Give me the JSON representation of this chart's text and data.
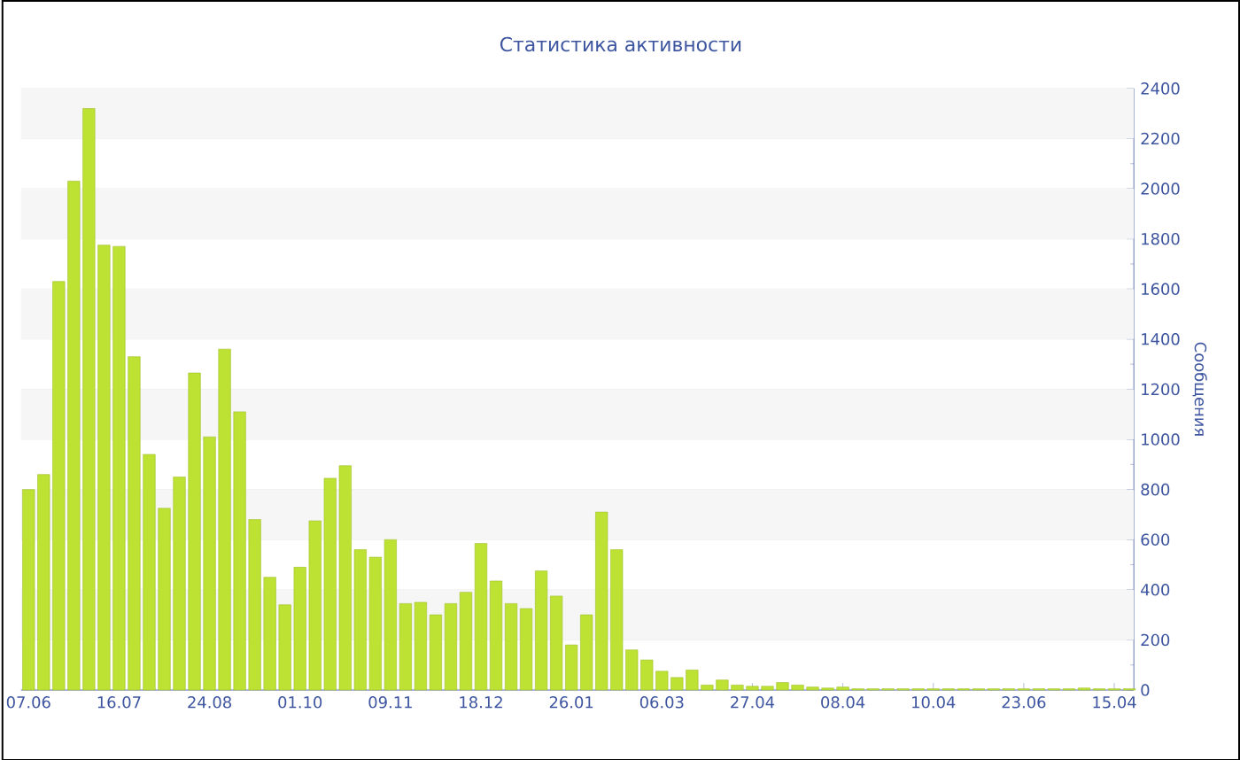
{
  "chart_data": {
    "type": "bar",
    "title": "Статистика активности",
    "ylabel": "Сообщения",
    "categories": [
      "07.06",
      null,
      null,
      null,
      null,
      null,
      "16.07",
      null,
      null,
      null,
      null,
      null,
      "24.08",
      null,
      null,
      null,
      null,
      null,
      "01.10",
      null,
      null,
      null,
      null,
      null,
      "09.11",
      null,
      null,
      null,
      null,
      null,
      "18.12",
      null,
      null,
      null,
      null,
      null,
      "26.01",
      null,
      null,
      null,
      null,
      null,
      "06.03",
      null,
      null,
      null,
      null,
      null,
      "27.04",
      null,
      null,
      null,
      null,
      null,
      "08.04",
      null,
      null,
      null,
      null,
      null,
      "10.04",
      null,
      null,
      null,
      null,
      null,
      "23.06",
      null,
      null,
      null,
      null,
      null,
      "15.04",
      null
    ],
    "values": [
      800,
      860,
      1630,
      2030,
      2320,
      1775,
      1770,
      1330,
      940,
      725,
      850,
      1265,
      1010,
      1360,
      1110,
      680,
      450,
      340,
      490,
      675,
      845,
      895,
      560,
      530,
      600,
      345,
      350,
      300,
      345,
      390,
      585,
      435,
      345,
      325,
      475,
      375,
      180,
      300,
      710,
      560,
      160,
      120,
      75,
      50,
      80,
      20,
      40,
      20,
      15,
      15,
      30,
      20,
      12,
      8,
      12,
      5,
      5,
      5,
      5,
      5,
      5,
      5,
      5,
      5,
      5,
      5,
      5,
      5,
      5,
      5,
      8,
      5,
      5,
      5
    ],
    "color": "#bde234",
    "ylim": [
      0,
      2400
    ],
    "yticks": [
      0,
      200,
      400,
      600,
      800,
      1000,
      1200,
      1400,
      1600,
      1800,
      2000,
      2200,
      2400
    ],
    "grid": "y"
  }
}
